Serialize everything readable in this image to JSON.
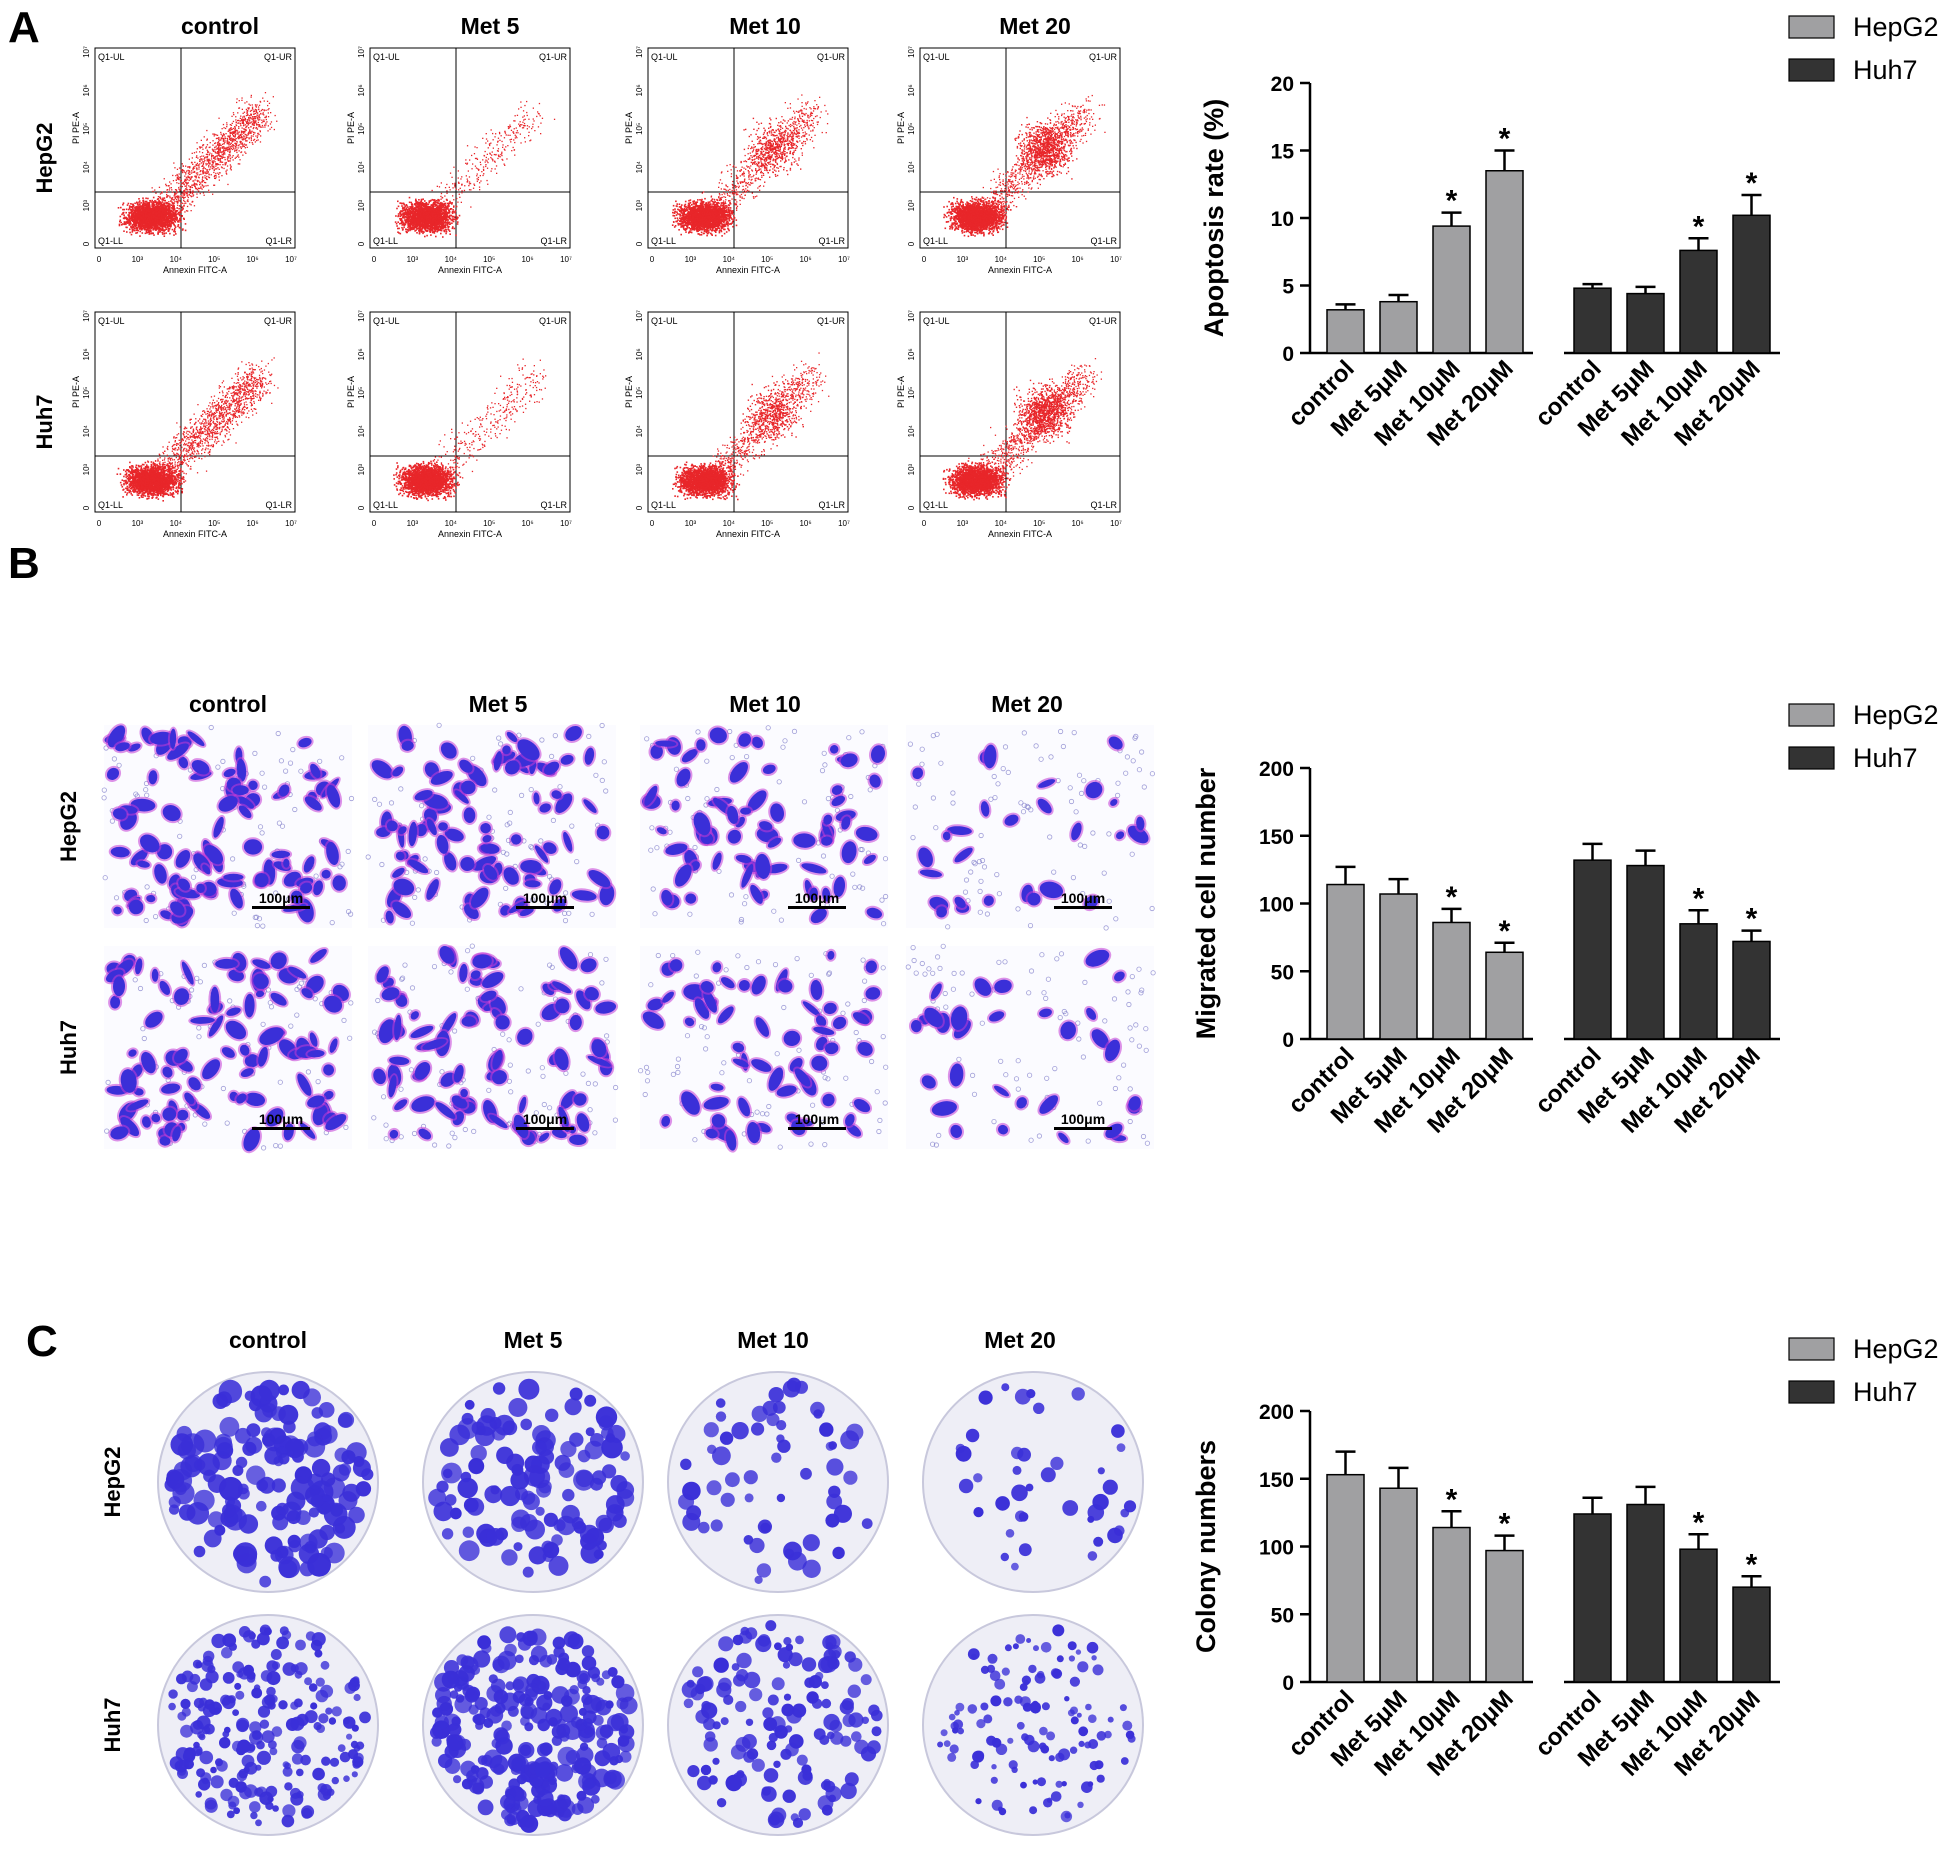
{
  "panels": {
    "A": {
      "letter": "A",
      "conditions": [
        "control",
        "Met 5",
        "Met 10",
        "Met 20"
      ],
      "rows": [
        "HepG2",
        "Huh7"
      ],
      "flow": {
        "quadrants": [
          "Q1-UL",
          "Q1-UR",
          "Q1-LL",
          "Q1-LR"
        ],
        "xlabel": "Annexin FITC-A",
        "ylabel": "PI PE-A",
        "xticks": [
          "0",
          "10³",
          "10⁴",
          "10⁵",
          "10⁶",
          "10⁷"
        ],
        "yticks": [
          "0",
          "10³",
          "10⁴",
          "10⁵",
          "10⁶",
          "10⁷"
        ]
      }
    },
    "B": {
      "letter": "B",
      "conditions": [
        "control",
        "Met 5",
        "Met 10",
        "Met 20"
      ],
      "rows": [
        "HepG2",
        "Huh7"
      ],
      "scalebar": "100μm"
    },
    "C": {
      "letter": "C",
      "conditions": [
        "control",
        "Met 5",
        "Met 10",
        "Met 20"
      ],
      "rows": [
        "HepG2",
        "Huh7"
      ]
    }
  },
  "colors": {
    "hepg2": "#a0a0a2",
    "huh7": "#333333",
    "flow_dots": "#e8262a",
    "stain": "#3a2fd8",
    "stain_edge": "#c23bd6"
  },
  "chart_data": [
    {
      "type": "bar",
      "panel": "A",
      "categories": [
        "control",
        "Met 5μM",
        "Met 10μM",
        "Met 20μM"
      ],
      "series": [
        {
          "name": "HepG2",
          "values": [
            3.2,
            3.8,
            9.4,
            13.5
          ],
          "errors": [
            0.4,
            0.5,
            1.0,
            1.5
          ],
          "significant": [
            false,
            false,
            true,
            true
          ]
        },
        {
          "name": "Huh7",
          "values": [
            4.8,
            4.4,
            7.6,
            10.2
          ],
          "errors": [
            0.3,
            0.5,
            0.9,
            1.5
          ],
          "significant": [
            false,
            false,
            true,
            true
          ]
        }
      ],
      "ylabel": "Apoptosis rate (%)",
      "ylim": [
        0,
        20
      ],
      "yticks": [
        0,
        5,
        10,
        15,
        20
      ],
      "significance_marker": "*",
      "legend_position": "top-right"
    },
    {
      "type": "bar",
      "panel": "B",
      "categories": [
        "control",
        "Met 5μM",
        "Met 10μM",
        "Met 20μM"
      ],
      "series": [
        {
          "name": "HepG2",
          "values": [
            114,
            107,
            86,
            64
          ],
          "errors": [
            13,
            11,
            10,
            7
          ],
          "significant": [
            false,
            false,
            true,
            true
          ]
        },
        {
          "name": "Huh7",
          "values": [
            132,
            128,
            85,
            72
          ],
          "errors": [
            12,
            11,
            10,
            8
          ],
          "significant": [
            false,
            false,
            true,
            true
          ]
        }
      ],
      "ylabel": "Migrated cell number",
      "ylim": [
        0,
        200
      ],
      "yticks": [
        0,
        50,
        100,
        150,
        200
      ],
      "significance_marker": "*",
      "legend_position": "top-right"
    },
    {
      "type": "bar",
      "panel": "C",
      "categories": [
        "control",
        "Met 5μM",
        "Met 10μM",
        "Met 20μM"
      ],
      "series": [
        {
          "name": "HepG2",
          "values": [
            153,
            143,
            114,
            97
          ],
          "errors": [
            17,
            15,
            12,
            11
          ],
          "significant": [
            false,
            false,
            true,
            true
          ]
        },
        {
          "name": "Huh7",
          "values": [
            124,
            131,
            98,
            70
          ],
          "errors": [
            12,
            13,
            11,
            8
          ],
          "significant": [
            false,
            false,
            true,
            true
          ]
        }
      ],
      "ylabel": "Colony numbers",
      "ylim": [
        0,
        200
      ],
      "yticks": [
        0,
        50,
        100,
        150,
        200
      ],
      "significance_marker": "*",
      "legend_position": "top-right"
    }
  ]
}
